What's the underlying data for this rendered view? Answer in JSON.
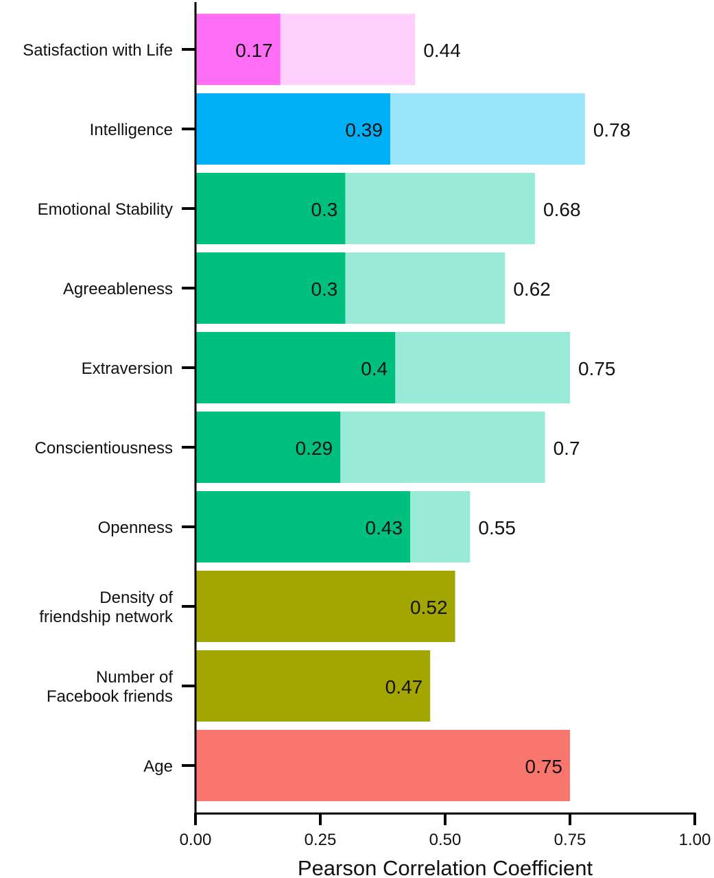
{
  "chart_data": {
    "type": "bar",
    "orientation": "horizontal",
    "title": "",
    "xlabel": "Pearson Correlation Coefficient",
    "ylabel": "",
    "xlim": [
      0,
      1.0
    ],
    "xticks": [
      0,
      0.25,
      0.5,
      0.75,
      1.0
    ],
    "xtick_labels": [
      "0.00",
      "0.25",
      "0.50",
      "0.75",
      "1.00"
    ],
    "grid": false,
    "categories": [
      [
        "Satisfaction with Life"
      ],
      [
        "Intelligence"
      ],
      [
        "Emotional Stability"
      ],
      [
        "Agreeableness"
      ],
      [
        "Extraversion"
      ],
      [
        "Conscientiousness"
      ],
      [
        "Openness"
      ],
      [
        "Density of",
        "friendship network"
      ],
      [
        "Number of",
        "Facebook friends"
      ],
      [
        "Age"
      ]
    ],
    "series": [
      {
        "name": "inner",
        "values": [
          0.17,
          0.39,
          0.3,
          0.3,
          0.4,
          0.29,
          0.43,
          0.52,
          0.47,
          0.75
        ],
        "labels": [
          "0.17",
          "0.39",
          "0.3",
          "0.3",
          "0.4",
          "0.29",
          "0.43",
          "0.52",
          "0.47",
          "0.75"
        ],
        "colors": [
          "#ff6ef5",
          "#00b0f6",
          "#00c07f",
          "#00c07f",
          "#00c07f",
          "#00c07f",
          "#00c07f",
          "#a3a500",
          "#a3a500",
          "#f8766d"
        ]
      },
      {
        "name": "outer",
        "values": [
          0.44,
          0.78,
          0.68,
          0.62,
          0.75,
          0.7,
          0.55,
          null,
          null,
          null
        ],
        "labels": [
          "0.44",
          "0.78",
          "0.68",
          "0.62",
          "0.75",
          "0.7",
          "0.55",
          null,
          null,
          null
        ],
        "colors": [
          "#ffd0fb",
          "#99e6fb",
          "#99ebd8",
          "#99ebd8",
          "#99ebd8",
          "#99ebd8",
          "#99ebd8",
          null,
          null,
          null
        ]
      }
    ]
  }
}
